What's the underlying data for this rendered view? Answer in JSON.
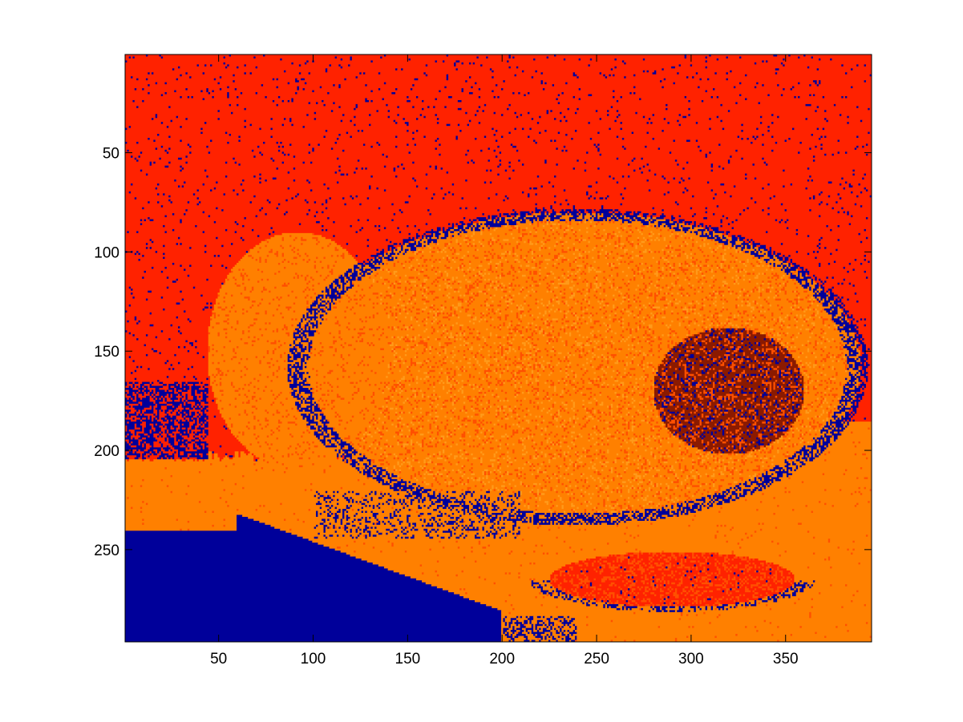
{
  "chart_data": {
    "type": "heatmap",
    "title": "",
    "xlabel": "",
    "ylabel": "",
    "xlim": [
      0.5,
      395.5
    ],
    "ylim": [
      0.5,
      296.5
    ],
    "y_axis_direction": "reversed",
    "grid": false,
    "legend": "none",
    "colorbar": false,
    "x_ticks": [
      50,
      100,
      150,
      200,
      250,
      300,
      350
    ],
    "x_tick_labels": [
      "50",
      "100",
      "150",
      "200",
      "250",
      "300",
      "350"
    ],
    "y_ticks": [
      50,
      100,
      150,
      200,
      250
    ],
    "y_tick_labels": [
      "50",
      "100",
      "150",
      "200",
      "250"
    ],
    "image_size": {
      "columns": 395,
      "rows": 296
    },
    "palette": [
      {
        "name": "background",
        "color": "#ff2200"
      },
      {
        "name": "fish-body",
        "color": "#ff8000"
      },
      {
        "name": "light-orange",
        "color": "#ff9a1a"
      },
      {
        "name": "mid-red",
        "color": "#ff5000"
      },
      {
        "name": "dark-red",
        "color": "#8b1a00"
      },
      {
        "name": "navy",
        "color": "#00009a"
      }
    ],
    "description_regions": [
      {
        "label": "top-background",
        "color_index": 0,
        "x": [
          1,
          395
        ],
        "y": [
          1,
          200
        ]
      },
      {
        "label": "table",
        "color_index": 1,
        "x": [
          1,
          395
        ],
        "y": [
          180,
          296
        ]
      },
      {
        "label": "body",
        "color_index": 1,
        "x": [
          100,
          385
        ],
        "y": [
          75,
          230
        ]
      },
      {
        "label": "tail",
        "color_index": 1,
        "x": [
          47,
          145
        ],
        "y": [
          105,
          210
        ]
      },
      {
        "label": "head",
        "color_index": 4,
        "x": [
          290,
          360
        ],
        "y": [
          130,
          200
        ]
      },
      {
        "label": "shadow",
        "color_index": 5,
        "x": [
          1,
          200
        ],
        "y": [
          230,
          296
        ]
      },
      {
        "label": "fin",
        "color_index": 3,
        "x": [
          220,
          350
        ],
        "y": [
          248,
          280
        ]
      }
    ]
  }
}
